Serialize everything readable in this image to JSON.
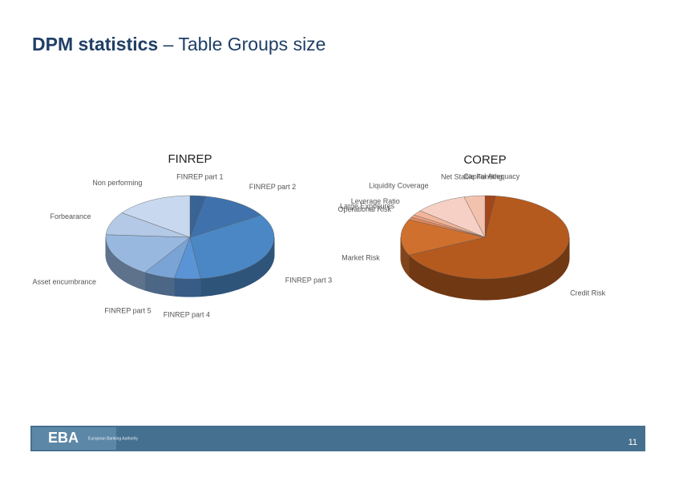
{
  "slide": {
    "title_bold": "DPM statistics",
    "title_rest": "– Table Groups size",
    "logo": "EBA",
    "logo_text": "European Banking Authority",
    "page_number": "11"
  },
  "chart_data": [
    {
      "type": "pie",
      "title": "FINREP",
      "categories": [
        "FINREP part 1",
        "FINREP part 2",
        "FINREP part 3",
        "FINREP part 4",
        "FINREP part 5",
        "Asset encumbrance",
        "Forbearance",
        "Non performing"
      ],
      "values": [
        3,
        13,
        32,
        5,
        6,
        17,
        9,
        15
      ],
      "colors": [
        "#3a6395",
        "#3f72ad",
        "#4a87c4",
        "#5b94d6",
        "#7aa4d6",
        "#98b8e0",
        "#b3c9e5",
        "#c8d8ee"
      ]
    },
    {
      "type": "pie",
      "title": "COREP",
      "categories": [
        "Capital Adequacy",
        "Credit Risk",
        "Market Risk",
        "Operational Risk",
        "Large Exposures",
        "Leverage Ratio",
        "Liquidity Coverage",
        "Net Stable Funding"
      ],
      "values": [
        2,
        66,
        14,
        1,
        1,
        2,
        10,
        4
      ],
      "colors": [
        "#a3461a",
        "#b55a1f",
        "#d0702e",
        "#e4895e",
        "#eea07e",
        "#f2b59a",
        "#f6d0c4",
        "#f3c2ae"
      ]
    }
  ]
}
